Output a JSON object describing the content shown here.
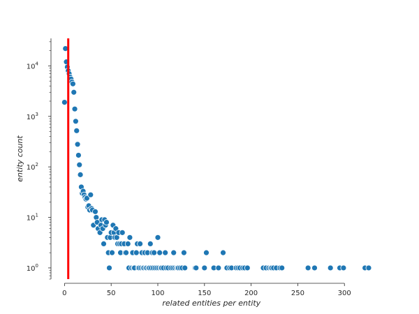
{
  "chart_data": {
    "type": "scatter",
    "title": "",
    "xlabel": "related entities per entity",
    "ylabel": "entity count",
    "xlim": [
      -13,
      335
    ],
    "ylim": [
      0.6,
      35000
    ],
    "yscale": "log",
    "grid": false,
    "legend": "none",
    "marker_color": "#1f77b4",
    "marker_edge_color": "#ffffff",
    "vline": {
      "x": 4,
      "color": "#ff0000"
    },
    "x_ticks": [
      {
        "value": 0,
        "label": "0"
      },
      {
        "value": 50,
        "label": "50"
      },
      {
        "value": 100,
        "label": "100"
      },
      {
        "value": 150,
        "label": "150"
      },
      {
        "value": 200,
        "label": "200"
      },
      {
        "value": 250,
        "label": "250"
      },
      {
        "value": 300,
        "label": "300"
      }
    ],
    "y_ticks": [
      {
        "value": 1,
        "base": "10",
        "exp": "0"
      },
      {
        "value": 10,
        "base": "10",
        "exp": "1"
      },
      {
        "value": 100,
        "base": "10",
        "exp": "2"
      },
      {
        "value": 1000,
        "base": "10",
        "exp": "3"
      },
      {
        "value": 10000,
        "base": "10",
        "exp": "4"
      }
    ],
    "points": [
      {
        "x": 0,
        "y": 1900
      },
      {
        "x": 1,
        "y": 22000
      },
      {
        "x": 2,
        "y": 12000
      },
      {
        "x": 3,
        "y": 9500
      },
      {
        "x": 4,
        "y": 8000
      },
      {
        "x": 5,
        "y": 7000
      },
      {
        "x": 6,
        "y": 6000
      },
      {
        "x": 7,
        "y": 5500
      },
      {
        "x": 8,
        "y": 4800
      },
      {
        "x": 9,
        "y": 4400
      },
      {
        "x": 10,
        "y": 3000
      },
      {
        "x": 11,
        "y": 1400
      },
      {
        "x": 12,
        "y": 800
      },
      {
        "x": 13,
        "y": 520
      },
      {
        "x": 14,
        "y": 280
      },
      {
        "x": 15,
        "y": 170
      },
      {
        "x": 16,
        "y": 110
      },
      {
        "x": 17,
        "y": 70
      },
      {
        "x": 18,
        "y": 40
      },
      {
        "x": 19,
        "y": 30
      },
      {
        "x": 20,
        "y": 33
      },
      {
        "x": 21,
        "y": 28
      },
      {
        "x": 22,
        "y": 25
      },
      {
        "x": 23,
        "y": 23
      },
      {
        "x": 24,
        "y": 24
      },
      {
        "x": 25,
        "y": 16
      },
      {
        "x": 26,
        "y": 17
      },
      {
        "x": 27,
        "y": 14
      },
      {
        "x": 28,
        "y": 28
      },
      {
        "x": 29,
        "y": 15
      },
      {
        "x": 30,
        "y": 14
      },
      {
        "x": 31,
        "y": 7
      },
      {
        "x": 33,
        "y": 13
      },
      {
        "x": 34,
        "y": 10
      },
      {
        "x": 35,
        "y": 8
      },
      {
        "x": 36,
        "y": 6
      },
      {
        "x": 38,
        "y": 5
      },
      {
        "x": 39,
        "y": 7
      },
      {
        "x": 40,
        "y": 9
      },
      {
        "x": 41,
        "y": 6
      },
      {
        "x": 42,
        "y": 3
      },
      {
        "x": 43,
        "y": 9
      },
      {
        "x": 44,
        "y": 7
      },
      {
        "x": 45,
        "y": 8
      },
      {
        "x": 46,
        "y": 4
      },
      {
        "x": 47,
        "y": 2
      },
      {
        "x": 48,
        "y": 1
      },
      {
        "x": 49,
        "y": 4
      },
      {
        "x": 50,
        "y": 5
      },
      {
        "x": 51,
        "y": 2
      },
      {
        "x": 52,
        "y": 7
      },
      {
        "x": 53,
        "y": 5
      },
      {
        "x": 54,
        "y": 4
      },
      {
        "x": 55,
        "y": 6
      },
      {
        "x": 56,
        "y": 4
      },
      {
        "x": 57,
        "y": 3
      },
      {
        "x": 58,
        "y": 5
      },
      {
        "x": 59,
        "y": 3
      },
      {
        "x": 60,
        "y": 2
      },
      {
        "x": 61,
        "y": 3
      },
      {
        "x": 62,
        "y": 5
      },
      {
        "x": 64,
        "y": 3
      },
      {
        "x": 65,
        "y": 2
      },
      {
        "x": 66,
        "y": 2
      },
      {
        "x": 68,
        "y": 3
      },
      {
        "x": 69,
        "y": 1
      },
      {
        "x": 70,
        "y": 4
      },
      {
        "x": 72,
        "y": 1
      },
      {
        "x": 73,
        "y": 2
      },
      {
        "x": 74,
        "y": 1
      },
      {
        "x": 75,
        "y": 1
      },
      {
        "x": 77,
        "y": 2
      },
      {
        "x": 78,
        "y": 3
      },
      {
        "x": 79,
        "y": 1
      },
      {
        "x": 80,
        "y": 1
      },
      {
        "x": 81,
        "y": 3
      },
      {
        "x": 82,
        "y": 1
      },
      {
        "x": 83,
        "y": 2
      },
      {
        "x": 84,
        "y": 1
      },
      {
        "x": 85,
        "y": 1
      },
      {
        "x": 86,
        "y": 2
      },
      {
        "x": 87,
        "y": 1
      },
      {
        "x": 88,
        "y": 1
      },
      {
        "x": 89,
        "y": 2
      },
      {
        "x": 90,
        "y": 1
      },
      {
        "x": 91,
        "y": 1
      },
      {
        "x": 92,
        "y": 3
      },
      {
        "x": 93,
        "y": 1
      },
      {
        "x": 94,
        "y": 2
      },
      {
        "x": 95,
        "y": 1
      },
      {
        "x": 96,
        "y": 2
      },
      {
        "x": 97,
        "y": 1
      },
      {
        "x": 99,
        "y": 1
      },
      {
        "x": 100,
        "y": 4
      },
      {
        "x": 101,
        "y": 1
      },
      {
        "x": 102,
        "y": 2
      },
      {
        "x": 103,
        "y": 1
      },
      {
        "x": 104,
        "y": 1
      },
      {
        "x": 106,
        "y": 1
      },
      {
        "x": 108,
        "y": 2
      },
      {
        "x": 109,
        "y": 1
      },
      {
        "x": 111,
        "y": 1
      },
      {
        "x": 114,
        "y": 1
      },
      {
        "x": 116,
        "y": 1
      },
      {
        "x": 117,
        "y": 2
      },
      {
        "x": 118,
        "y": 1
      },
      {
        "x": 120,
        "y": 1
      },
      {
        "x": 121,
        "y": 1
      },
      {
        "x": 122,
        "y": 1
      },
      {
        "x": 124,
        "y": 1
      },
      {
        "x": 126,
        "y": 1
      },
      {
        "x": 128,
        "y": 2
      },
      {
        "x": 129,
        "y": 1
      },
      {
        "x": 140,
        "y": 1
      },
      {
        "x": 141,
        "y": 1
      },
      {
        "x": 150,
        "y": 1
      },
      {
        "x": 152,
        "y": 2
      },
      {
        "x": 160,
        "y": 1
      },
      {
        "x": 165,
        "y": 1
      },
      {
        "x": 170,
        "y": 2
      },
      {
        "x": 174,
        "y": 1
      },
      {
        "x": 177,
        "y": 1
      },
      {
        "x": 179,
        "y": 1
      },
      {
        "x": 184,
        "y": 1
      },
      {
        "x": 186,
        "y": 1
      },
      {
        "x": 188,
        "y": 1
      },
      {
        "x": 191,
        "y": 1
      },
      {
        "x": 193,
        "y": 1
      },
      {
        "x": 196,
        "y": 1
      },
      {
        "x": 213,
        "y": 1
      },
      {
        "x": 216,
        "y": 1
      },
      {
        "x": 219,
        "y": 1
      },
      {
        "x": 221,
        "y": 1
      },
      {
        "x": 222,
        "y": 1
      },
      {
        "x": 224,
        "y": 1
      },
      {
        "x": 227,
        "y": 1
      },
      {
        "x": 231,
        "y": 1
      },
      {
        "x": 233,
        "y": 1
      },
      {
        "x": 261,
        "y": 1
      },
      {
        "x": 268,
        "y": 1
      },
      {
        "x": 285,
        "y": 1
      },
      {
        "x": 295,
        "y": 1
      },
      {
        "x": 299,
        "y": 1
      },
      {
        "x": 322,
        "y": 1
      },
      {
        "x": 326,
        "y": 1
      }
    ]
  }
}
